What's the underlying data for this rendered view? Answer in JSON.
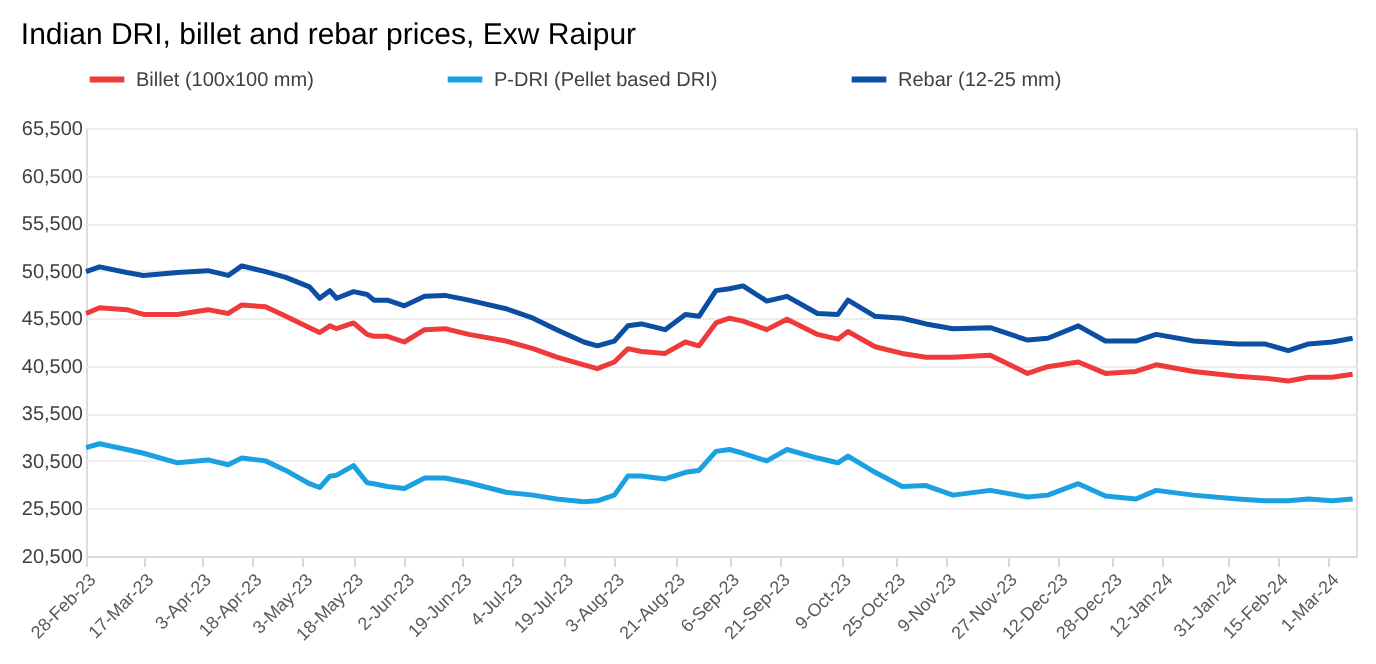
{
  "chart_data": {
    "type": "line",
    "title": "Indian DRI, billet and rebar prices, Exw Raipur",
    "x": [
      "2023-02-28",
      "2023-03-04",
      "2023-03-12",
      "2023-03-17",
      "2023-03-27",
      "2023-04-05",
      "2023-04-11",
      "2023-04-15",
      "2023-04-22",
      "2023-04-28",
      "2023-05-05",
      "2023-05-08",
      "2023-05-11",
      "2023-05-13",
      "2023-05-18",
      "2023-05-22",
      "2023-05-24",
      "2023-05-28",
      "2023-06-02",
      "2023-06-08",
      "2023-06-14",
      "2023-06-21",
      "2023-07-02",
      "2023-07-10",
      "2023-07-17",
      "2023-07-25",
      "2023-07-29",
      "2023-08-03",
      "2023-08-07",
      "2023-08-11",
      "2023-08-18",
      "2023-08-24",
      "2023-08-28",
      "2023-09-02",
      "2023-09-06",
      "2023-09-10",
      "2023-09-17",
      "2023-09-23",
      "2023-10-02",
      "2023-10-08",
      "2023-10-11",
      "2023-10-19",
      "2023-10-27",
      "2023-11-03",
      "2023-11-11",
      "2023-11-22",
      "2023-12-03",
      "2023-12-09",
      "2023-12-18",
      "2023-12-26",
      "2024-01-04",
      "2024-01-10",
      "2024-01-21",
      "2024-02-03",
      "2024-02-11",
      "2024-02-18",
      "2024-02-24",
      "2024-03-02",
      "2024-03-08"
    ],
    "series": [
      {
        "name": "Billet (100x100 mm)",
        "color": "#ee3a3a",
        "values": [
          46000,
          46600,
          46400,
          45900,
          45900,
          46400,
          46000,
          46900,
          46700,
          45700,
          44500,
          44000,
          44700,
          44400,
          45000,
          43800,
          43600,
          43600,
          43000,
          44300,
          44400,
          43800,
          43100,
          42300,
          41400,
          40600,
          40200,
          40900,
          42300,
          42000,
          41800,
          43000,
          42600,
          45000,
          45500,
          45200,
          44300,
          45400,
          43800,
          43300,
          44100,
          42500,
          41800,
          41400,
          41400,
          41600,
          39700,
          40400,
          40900,
          39700,
          39900,
          40600,
          39900,
          39400,
          39200,
          38900,
          39300,
          39300,
          39600
        ]
      },
      {
        "name": "P-DRI (Pellet based DRI)",
        "color": "#1ba1e2",
        "values": [
          31900,
          32300,
          31700,
          31300,
          30300,
          30600,
          30100,
          30800,
          30500,
          29500,
          28100,
          27700,
          28900,
          29000,
          30000,
          28200,
          28100,
          27800,
          27600,
          28700,
          28700,
          28200,
          27200,
          26900,
          26500,
          26200,
          26300,
          26900,
          28900,
          28900,
          28600,
          29300,
          29500,
          31500,
          31700,
          31300,
          30500,
          31700,
          30800,
          30300,
          31000,
          29300,
          27800,
          27900,
          26900,
          27400,
          26700,
          26900,
          28100,
          26800,
          26500,
          27400,
          26900,
          26500,
          26300,
          26300,
          26500,
          26300,
          26500
        ]
      },
      {
        "name": "Rebar (12-25 mm)",
        "color": "#0b4ea2",
        "values": [
          50400,
          50900,
          50300,
          50000,
          50300,
          50500,
          50000,
          51000,
          50400,
          49800,
          48800,
          47600,
          48400,
          47600,
          48300,
          48000,
          47400,
          47400,
          46800,
          47800,
          47900,
          47400,
          46500,
          45500,
          44300,
          43000,
          42600,
          43100,
          44700,
          44900,
          44300,
          45900,
          45700,
          48400,
          48600,
          48900,
          47300,
          47800,
          46000,
          45900,
          47400,
          45700,
          45500,
          44900,
          44400,
          44500,
          43200,
          43400,
          44700,
          43100,
          43100,
          43800,
          43100,
          42800,
          42800,
          42100,
          42800,
          43000,
          43400
        ]
      }
    ],
    "xlim": [
      "2023-02-28",
      "2024-03-09"
    ],
    "xticks": [
      {
        "value": "2023-02-28",
        "label": "28-Feb-23"
      },
      {
        "value": "2023-03-17",
        "label": "17-Mar-23"
      },
      {
        "value": "2023-04-03",
        "label": "3-Apr-23"
      },
      {
        "value": "2023-04-18",
        "label": "18-Apr-23"
      },
      {
        "value": "2023-05-03",
        "label": "3-May-23"
      },
      {
        "value": "2023-05-18",
        "label": "18-May-23"
      },
      {
        "value": "2023-06-02",
        "label": "2-Jun-23"
      },
      {
        "value": "2023-06-19",
        "label": "19-Jun-23"
      },
      {
        "value": "2023-07-04",
        "label": "4-Jul-23"
      },
      {
        "value": "2023-07-19",
        "label": "19-Jul-23"
      },
      {
        "value": "2023-08-03",
        "label": "3-Aug-23"
      },
      {
        "value": "2023-08-21",
        "label": "21-Aug-23"
      },
      {
        "value": "2023-09-06",
        "label": "6-Sep-23"
      },
      {
        "value": "2023-09-21",
        "label": "21-Sep-23"
      },
      {
        "value": "2023-10-09",
        "label": "9-Oct-23"
      },
      {
        "value": "2023-10-25",
        "label": "25-Oct-23"
      },
      {
        "value": "2023-11-09",
        "label": "9-Nov-23"
      },
      {
        "value": "2023-11-27",
        "label": "27-Nov-23"
      },
      {
        "value": "2023-12-12",
        "label": "12-Dec-23"
      },
      {
        "value": "2023-12-28",
        "label": "28-Dec-23"
      },
      {
        "value": "2024-01-12",
        "label": "12-Jan-24"
      },
      {
        "value": "2024-01-31",
        "label": "31-Jan-24"
      },
      {
        "value": "2024-02-15",
        "label": "15-Feb-24"
      },
      {
        "value": "2024-03-01",
        "label": "1-Mar-24"
      }
    ],
    "ylim": [
      20500,
      65500
    ],
    "yticks": [
      {
        "value": 20500,
        "label": "20,500"
      },
      {
        "value": 25500,
        "label": "25,500"
      },
      {
        "value": 30500,
        "label": "30,500"
      },
      {
        "value": 35500,
        "label": "35,500"
      },
      {
        "value": 40500,
        "label": "40,500"
      },
      {
        "value": 45500,
        "label": "45,500"
      },
      {
        "value": 50500,
        "label": "50,500"
      },
      {
        "value": 55500,
        "label": "55,500"
      },
      {
        "value": 60500,
        "label": "60,500"
      },
      {
        "value": 65500,
        "label": "65,500"
      }
    ],
    "grid": "y",
    "legend": "top",
    "marker": "none",
    "line_style": "solid"
  }
}
